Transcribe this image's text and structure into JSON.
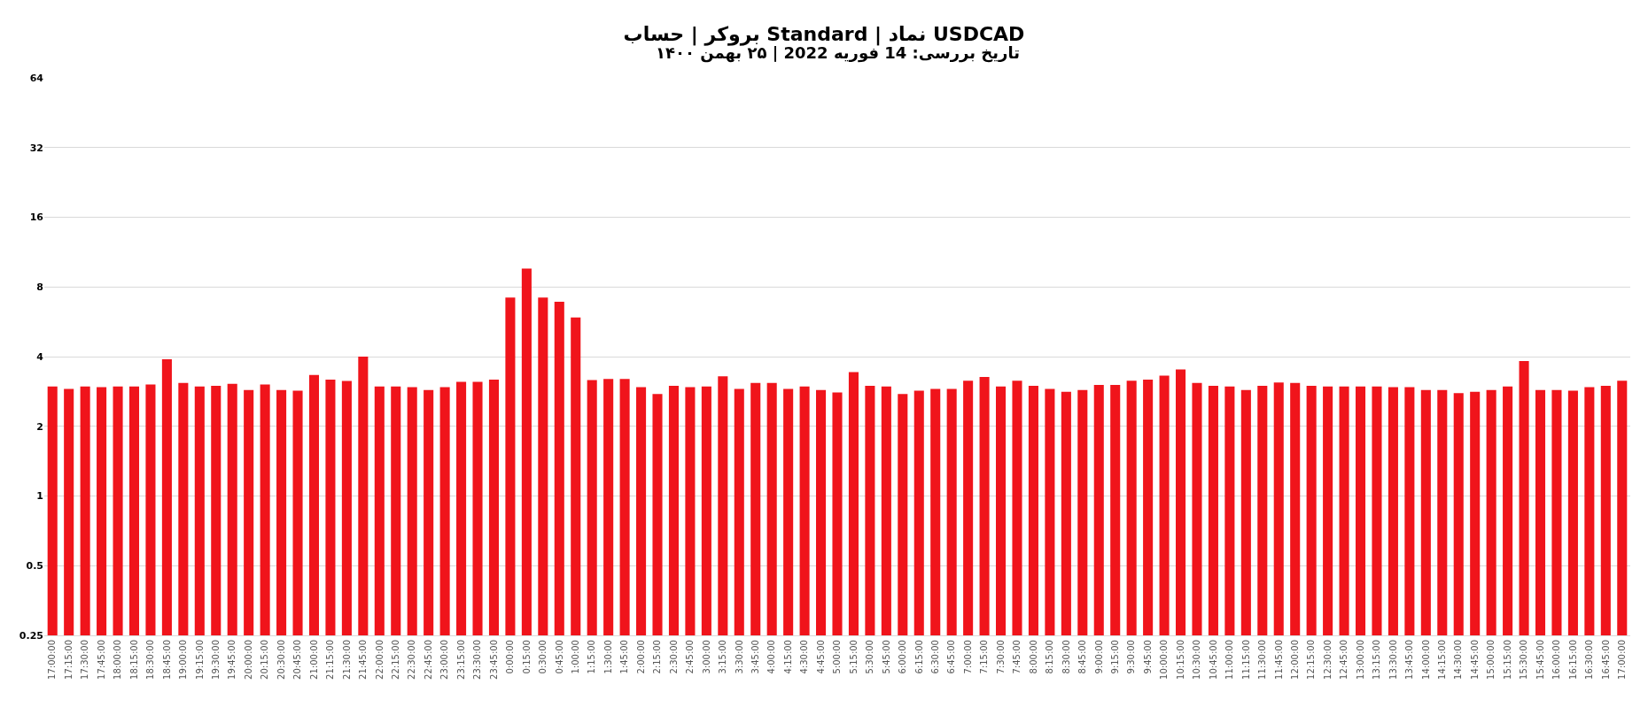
{
  "chart_data": {
    "type": "bar",
    "title": "بروکر | حساب Standard | نماد USDCAD",
    "subtitle": "تاریخ بررسی: 14 فوریه 2022 | ۲۵ بهمن ۱۴۰۰",
    "categories": [
      "17:00:00",
      "17:15:00",
      "17:30:00",
      "17:45:00",
      "18:00:00",
      "18:15:00",
      "18:30:00",
      "18:45:00",
      "19:00:00",
      "19:15:00",
      "19:30:00",
      "19:45:00",
      "20:00:00",
      "20:15:00",
      "20:30:00",
      "20:45:00",
      "21:00:00",
      "21:15:00",
      "21:30:00",
      "21:45:00",
      "22:00:00",
      "22:15:00",
      "22:30:00",
      "22:45:00",
      "23:00:00",
      "23:15:00",
      "23:30:00",
      "23:45:00",
      "0:00:00",
      "0:15:00",
      "0:30:00",
      "0:45:00",
      "1:00:00",
      "1:15:00",
      "1:30:00",
      "1:45:00",
      "2:00:00",
      "2:15:00",
      "2:30:00",
      "2:45:00",
      "3:00:00",
      "3:15:00",
      "3:30:00",
      "3:45:00",
      "4:00:00",
      "4:15:00",
      "4:30:00",
      "4:45:00",
      "5:00:00",
      "5:15:00",
      "5:30:00",
      "5:45:00",
      "6:00:00",
      "6:15:00",
      "6:30:00",
      "6:45:00",
      "7:00:00",
      "7:15:00",
      "7:30:00",
      "7:45:00",
      "8:00:00",
      "8:15:00",
      "8:30:00",
      "8:45:00",
      "9:00:00",
      "9:15:00",
      "9:30:00",
      "9:45:00",
      "10:00:00",
      "10:15:00",
      "10:30:00",
      "10:45:00",
      "11:00:00",
      "11:15:00",
      "11:30:00",
      "11:45:00",
      "12:00:00",
      "12:15:00",
      "12:30:00",
      "12:45:00",
      "13:00:00",
      "13:15:00",
      "13:30:00",
      "13:45:00",
      "14:00:00",
      "14:15:00",
      "14:30:00",
      "14:45:00",
      "15:00:00",
      "15:15:00",
      "15:30:00",
      "15:45:00",
      "16:00:00",
      "16:15:00",
      "16:30:00",
      "16:45:00",
      "17:00:00"
    ],
    "values": [
      2.97,
      2.9,
      2.97,
      2.95,
      2.97,
      2.97,
      3.03,
      3.9,
      3.08,
      2.97,
      2.99,
      3.05,
      2.87,
      3.03,
      2.87,
      2.85,
      3.33,
      3.18,
      3.14,
      4.0,
      2.97,
      2.97,
      2.95,
      2.87,
      2.95,
      3.11,
      3.11,
      3.18,
      7.2,
      9.6,
      7.2,
      6.9,
      5.9,
      3.17,
      3.2,
      3.2,
      2.95,
      2.76,
      2.99,
      2.95,
      2.97,
      3.29,
      2.9,
      3.08,
      3.08,
      2.9,
      2.97,
      2.87,
      2.8,
      3.43,
      2.99,
      2.97,
      2.76,
      2.85,
      2.9,
      2.9,
      3.15,
      3.27,
      2.97,
      3.15,
      2.99,
      2.9,
      2.82,
      2.87,
      3.02,
      3.02,
      3.15,
      3.18,
      3.31,
      3.52,
      3.08,
      2.99,
      2.97,
      2.87,
      2.99,
      3.09,
      3.08,
      2.99,
      2.97,
      2.97,
      2.97,
      2.97,
      2.95,
      2.95,
      2.87,
      2.87,
      2.78,
      2.82,
      2.87,
      2.97,
      3.83,
      2.87,
      2.87,
      2.85,
      2.95,
      2.99,
      3.15
    ],
    "color": "#f0141b",
    "log": true,
    "ylim": [
      0.25,
      64
    ],
    "yticks": [
      0.25,
      0.5,
      1,
      2,
      4,
      8,
      16,
      32,
      64
    ],
    "grid": "y"
  }
}
